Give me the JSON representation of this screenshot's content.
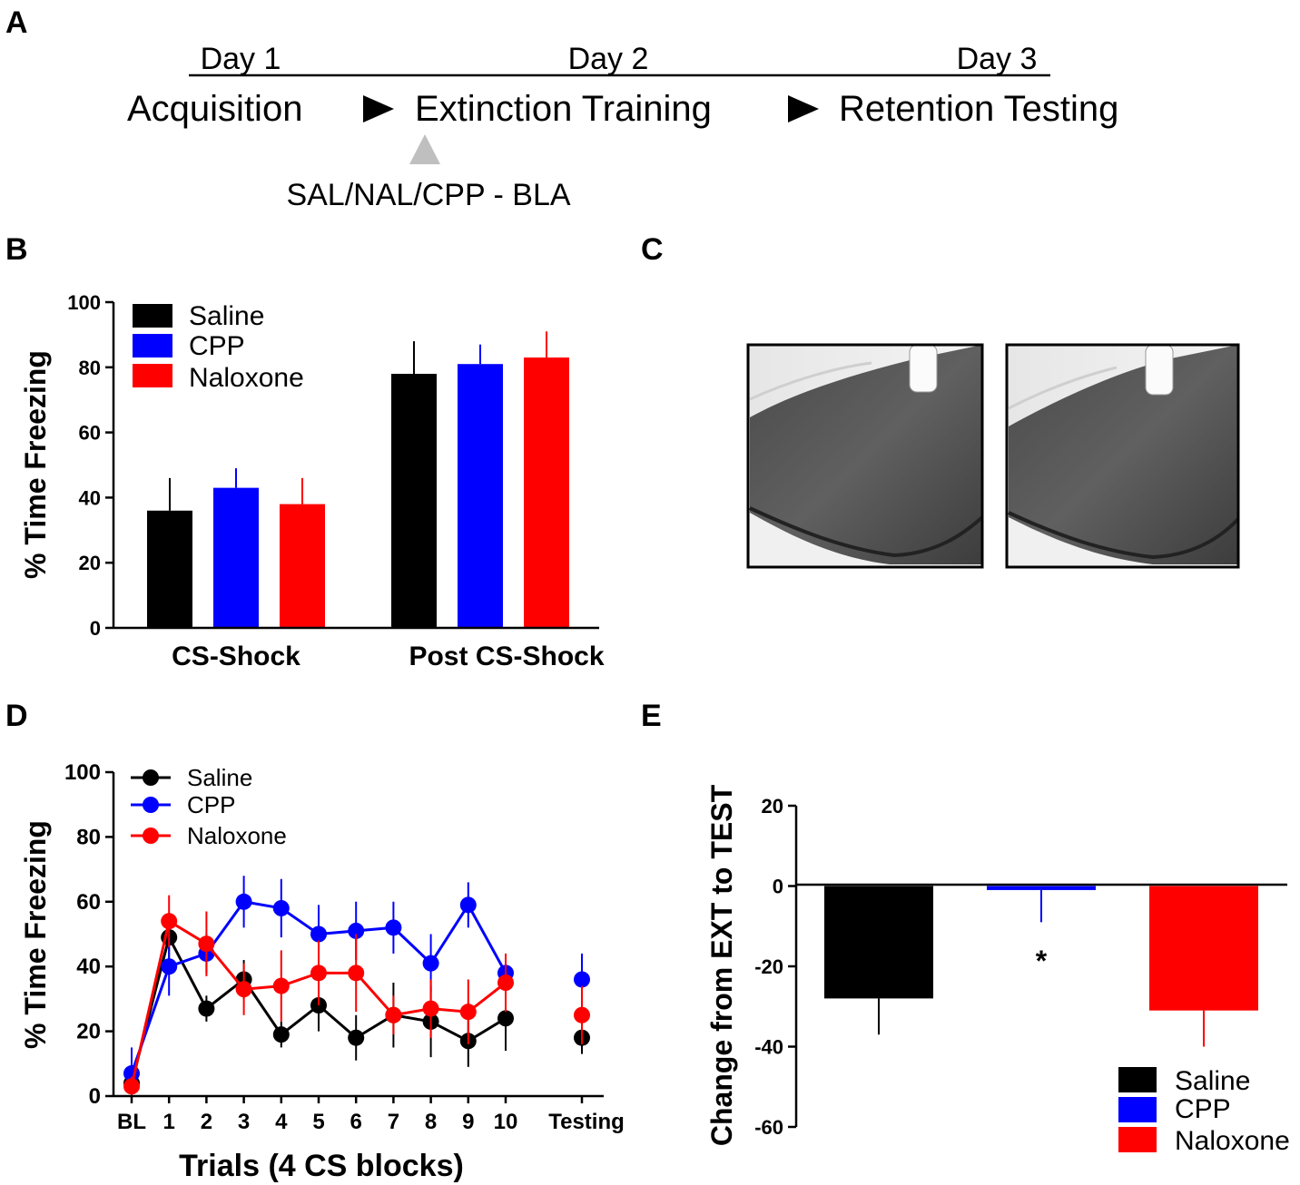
{
  "colors": {
    "saline": "#000000",
    "cpp": "#0000ff",
    "naloxone": "#ff0000",
    "arrow": "#000000",
    "injection_marker": "#bfbfbf"
  },
  "panel_a": {
    "letter": "A",
    "days": [
      "Day 1",
      "Day 2",
      "Day 3"
    ],
    "phases": [
      "Acquisition",
      "Extinction Training",
      "Retention Testing"
    ],
    "arrow_icon": "right-triangle-arrow",
    "marker_icon": "up-triangle-marker",
    "injection_label": "SAL/NAL/CPP - BLA"
  },
  "panel_c": {
    "letter": "C",
    "images": [
      "histology-section-left",
      "histology-section-right"
    ]
  },
  "chart_data": [
    {
      "panel": "B",
      "type": "bar",
      "ylabel": "% Time Freezing",
      "ylim": [
        0,
        100
      ],
      "yticks": [
        "0",
        "20",
        "40",
        "60",
        "80",
        "100"
      ],
      "categories": [
        "CS-Shock",
        "Post CS-Shock"
      ],
      "series": [
        {
          "name": "Saline",
          "color": "#000000",
          "values": [
            36,
            78
          ],
          "errors": [
            10,
            10
          ]
        },
        {
          "name": "CPP",
          "color": "#0000ff",
          "values": [
            43,
            81
          ],
          "errors": [
            6,
            6
          ]
        },
        {
          "name": "Naloxone",
          "color": "#ff0000",
          "values": [
            38,
            83
          ],
          "errors": [
            8,
            8
          ]
        }
      ],
      "legend": "top-left"
    },
    {
      "panel": "D",
      "type": "line",
      "ylabel": "% Time Freezing",
      "xlabel": "Trials (4 CS blocks)",
      "ylim": [
        0,
        100
      ],
      "yticks": [
        "0",
        "20",
        "40",
        "60",
        "80",
        "100"
      ],
      "x": [
        "BL",
        "1",
        "2",
        "3",
        "4",
        "5",
        "6",
        "7",
        "8",
        "9",
        "10"
      ],
      "extra_point_label": "Testing",
      "series": [
        {
          "name": "Saline",
          "color": "#000000",
          "values": [
            4,
            49,
            27,
            36,
            19,
            28,
            18,
            25,
            23,
            17,
            24
          ],
          "errors": [
            3,
            7,
            4,
            6,
            4,
            8,
            7,
            10,
            11,
            8,
            10
          ],
          "testing": 18,
          "testing_error": 5
        },
        {
          "name": "CPP",
          "color": "#0000ff",
          "values": [
            7,
            40,
            44,
            60,
            58,
            50,
            51,
            52,
            41,
            59,
            38
          ],
          "errors": [
            8,
            9,
            6,
            8,
            9,
            9,
            9,
            8,
            9,
            7,
            6
          ],
          "testing": 36,
          "testing_error": 8
        },
        {
          "name": "Naloxone",
          "color": "#ff0000",
          "values": [
            3,
            54,
            47,
            33,
            34,
            38,
            38,
            25,
            27,
            26,
            35
          ],
          "errors": [
            3,
            8,
            10,
            8,
            11,
            10,
            12,
            6,
            9,
            10,
            9
          ],
          "testing": 25,
          "testing_error": 9
        }
      ],
      "legend": "top-left"
    },
    {
      "panel": "E",
      "type": "bar",
      "ylabel": "Change from EXT to TEST",
      "ylim": [
        -60,
        20
      ],
      "yticks": [
        "20",
        "0",
        "-20",
        "-40",
        "-60"
      ],
      "categories": [
        "Saline",
        "CPP",
        "Naloxone"
      ],
      "series": [
        {
          "name": "Saline",
          "color": "#000000",
          "value": -28,
          "error": 9
        },
        {
          "name": "CPP",
          "color": "#0000ff",
          "value": -1,
          "error": 8
        },
        {
          "name": "Naloxone",
          "color": "#ff0000",
          "value": -31,
          "error": 9
        }
      ],
      "annotation": "*",
      "legend": "bottom-right"
    }
  ]
}
